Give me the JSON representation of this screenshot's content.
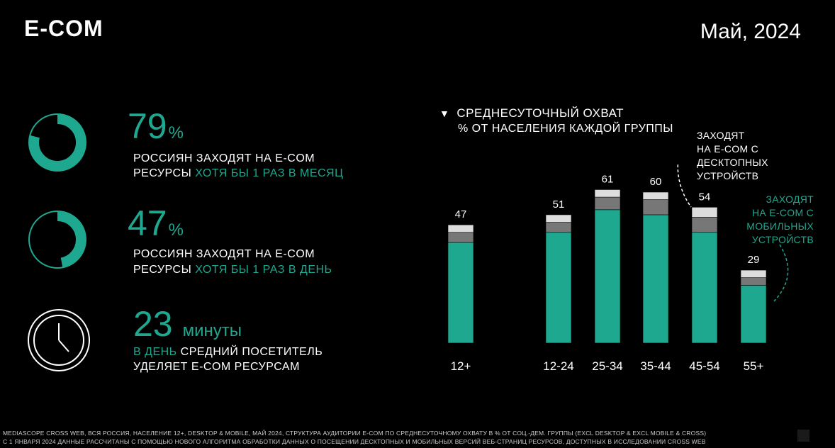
{
  "header": {
    "title": "E-COM",
    "date": "Май, 2024"
  },
  "stats": [
    {
      "value": "79",
      "unit": "%",
      "line1": "РОССИЯН ЗАХОДЯТ НА E-COM",
      "line2_prefix": "РЕСУРСЫ",
      "line2_accent": "ХОТЯ БЫ 1 РАЗ В МЕСЯЦ",
      "fraction": 0.79,
      "icon": "ring-chart-icon"
    },
    {
      "value": "47",
      "unit": "%",
      "line1": "РОССИЯН ЗАХОДЯТ НА E-COM",
      "line2_prefix": "РЕСУРСЫ",
      "line2_accent": "ХОТЯ БЫ 1 РАЗ В ДЕНЬ",
      "fraction": 0.47,
      "icon": "ring-chart-icon"
    },
    {
      "value": "23",
      "unit": "минуты",
      "line1_accent": "В ДЕНЬ",
      "line1_rest": "СРЕДНИЙ ПОСЕТИТЕЛЬ",
      "line2": "УДЕЛЯЕТ E-COM РЕСУРСАМ",
      "icon": "clock-icon"
    }
  ],
  "chart_data": {
    "type": "bar",
    "title": "СРЕДНЕСУТОЧНЫЙ ОХВАТ",
    "subtitle": "% ОТ НАСЕЛЕНИЯ КАЖДОЙ ГРУППЫ",
    "categories": [
      "12+",
      "12-24",
      "25-34",
      "35-44",
      "45-54",
      "55+"
    ],
    "totals": [
      47,
      51,
      61,
      60,
      54,
      29
    ],
    "series": [
      {
        "name": "",
        "values": [
          40,
          44,
          53,
          51,
          44,
          23
        ],
        "color": "#1fa890"
      },
      {
        "name": "",
        "values": [
          4,
          4,
          5,
          6,
          6,
          3
        ],
        "color": "#777777"
      },
      {
        "name": "",
        "values": [
          3,
          3,
          3,
          3,
          4,
          3
        ],
        "color": "#dddddd"
      }
    ],
    "annotations": {
      "desktop": [
        "ЗАХОДЯТ",
        "НА E-COM С",
        "ДЕСКТОПНЫХ",
        "УСТРОЙСТВ"
      ],
      "mobile": [
        "ЗАХОДЯТ",
        "НА E-COM С",
        "МОБИЛЬНЫХ",
        "УСТРОЙСТВ"
      ]
    },
    "ylim": [
      0,
      70
    ],
    "grid": false
  },
  "footer": {
    "line1": "MEDIASCOPE CROSS WEB, ВСЯ РОССИЯ, НАСЕЛЕНИЕ 12+, DESKTOP & MOBILE, МАЙ 2024, СТРУКТУРА АУДИТОРИИ E-COM ПО СРЕДНЕСУТОЧНОМУ ОХВАТУ В % ОТ СОЦ.-ДЕМ. ГРУППЫ (EXCL DESKTOP & EXCL MOBILE & CROSS)",
    "line2": "С 1 ЯНВАРЯ 2024 ДАННЫЕ РАССЧИТАНЫ С ПОМОЩЬЮ НОВОГО АЛГОРИТМА ОБРАБОТКИ ДАННЫХ О ПОСЕЩЕНИИ ДЕСКТОПНЫХ И МОБИЛЬНЫХ ВЕРСИЙ ВЕБ-СТРАНИЦ РЕСУРСОВ, ДОСТУПНЫХ В ИССЛЕДОВАНИИ CROSS WEB"
  }
}
